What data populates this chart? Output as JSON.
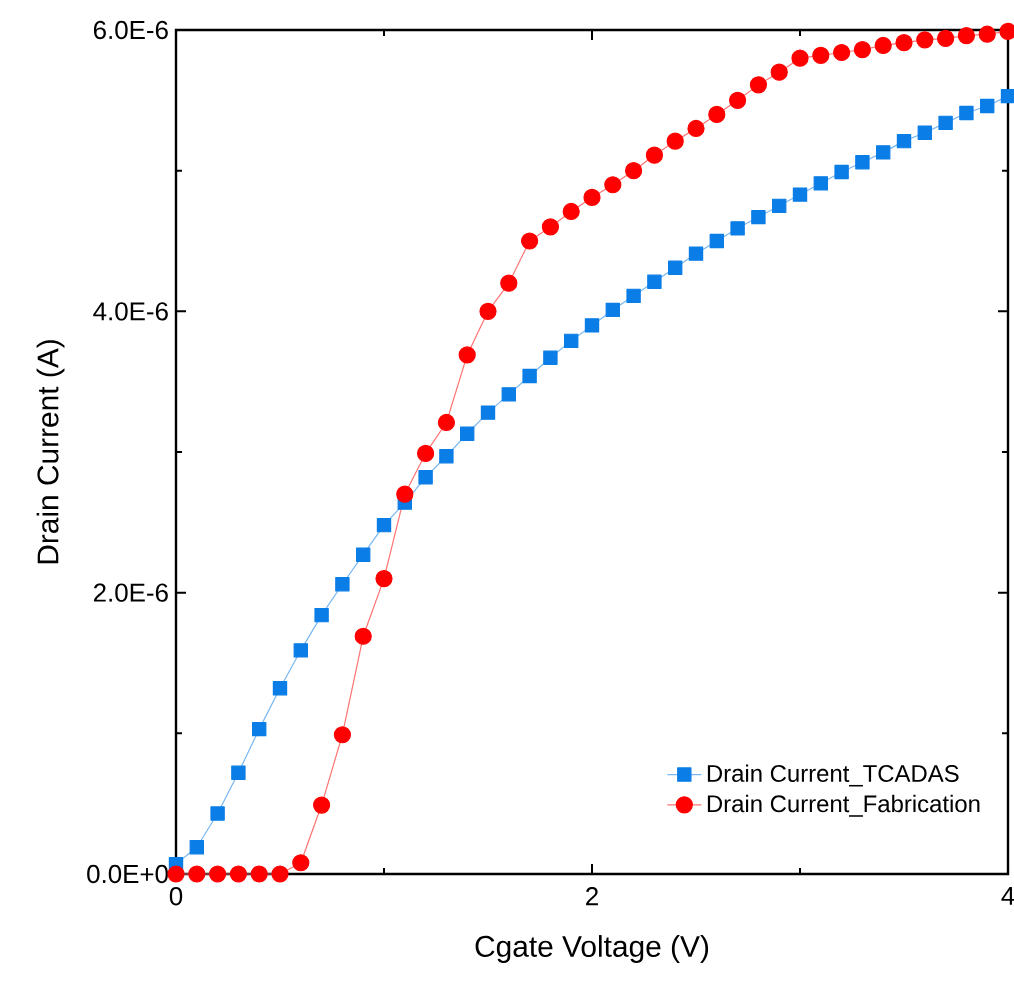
{
  "chart_data": {
    "type": "line",
    "xlabel": "Cgate Voltage (V)",
    "ylabel": "Drain Current (A)",
    "x": [
      0,
      0.1,
      0.2,
      0.3,
      0.4,
      0.5,
      0.6,
      0.7,
      0.8,
      0.9,
      1.0,
      1.1,
      1.2,
      1.3,
      1.4,
      1.5,
      1.6,
      1.7,
      1.8,
      1.9,
      2.0,
      2.1,
      2.2,
      2.3,
      2.4,
      2.5,
      2.6,
      2.7,
      2.8,
      2.9,
      3.0,
      3.1,
      3.2,
      3.3,
      3.4,
      3.5,
      3.6,
      3.7,
      3.8,
      3.9,
      4.0
    ],
    "series": [
      {
        "name": "Drain Current_TCADAS",
        "color": "#0a7de6",
        "marker": "square",
        "values": [
          7e-08,
          1.9e-07,
          4.3e-07,
          7.2e-07,
          1.03e-06,
          1.32e-06,
          1.59e-06,
          1.84e-06,
          2.06e-06,
          2.27e-06,
          2.48e-06,
          2.64e-06,
          2.82e-06,
          2.97e-06,
          3.13e-06,
          3.28e-06,
          3.41e-06,
          3.54e-06,
          3.67e-06,
          3.79e-06,
          3.9e-06,
          4.01e-06,
          4.11e-06,
          4.21e-06,
          4.31e-06,
          4.41e-06,
          4.5e-06,
          4.59e-06,
          4.67e-06,
          4.75e-06,
          4.83e-06,
          4.91e-06,
          4.99e-06,
          5.06e-06,
          5.13e-06,
          5.21e-06,
          5.27e-06,
          5.34e-06,
          5.41e-06,
          5.46e-06,
          5.53e-06
        ]
      },
      {
        "name": "Drain Current_Fabrication",
        "color": "#ff0000",
        "marker": "circle",
        "values": [
          0,
          0,
          0,
          0,
          0,
          0,
          8e-08,
          4.9e-07,
          9.9e-07,
          1.69e-06,
          2.1e-06,
          2.7e-06,
          2.99e-06,
          3.21e-06,
          3.69e-06,
          4e-06,
          4.2e-06,
          4.5e-06,
          4.6e-06,
          4.71e-06,
          4.81e-06,
          4.9e-06,
          5e-06,
          5.11e-06,
          5.21e-06,
          5.3e-06,
          5.4e-06,
          5.5e-06,
          5.61e-06,
          5.7e-06,
          5.8e-06,
          5.82e-06,
          5.84e-06,
          5.86e-06,
          5.89e-06,
          5.91e-06,
          5.93e-06,
          5.94e-06,
          5.96e-06,
          5.97e-06,
          5.99e-06
        ]
      }
    ],
    "xlim": [
      0,
      4
    ],
    "ylim": [
      0,
      6e-06
    ],
    "xticks": [
      0,
      2,
      4
    ],
    "yticks": [
      {
        "value": 0,
        "label": "0.0E+0"
      },
      {
        "value": 2e-06,
        "label": "2.0E-6"
      },
      {
        "value": 4e-06,
        "label": "4.0E-6"
      },
      {
        "value": 6e-06,
        "label": "6.0E-6"
      }
    ],
    "grid": false,
    "legend": "bottom right"
  }
}
